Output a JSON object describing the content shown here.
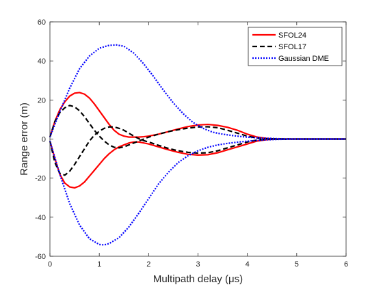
{
  "chart_data": {
    "type": "line",
    "xlabel": "Multipath delay (μs)",
    "ylabel": "Range error (m)",
    "xlim": [
      0,
      6
    ],
    "ylim": [
      -60,
      60
    ],
    "xticks": [
      0,
      1,
      2,
      3,
      4,
      5,
      6
    ],
    "yticks": [
      -60,
      -40,
      -20,
      0,
      20,
      40,
      60
    ],
    "grid": false,
    "legend_position": "top-right",
    "series": [
      {
        "name": "SFOL24",
        "color": "#ff0000",
        "style": "solid",
        "upper": {
          "x": [
            0,
            0.1,
            0.2,
            0.3,
            0.4,
            0.5,
            0.6,
            0.7,
            0.8,
            0.9,
            1.0,
            1.1,
            1.2,
            1.3,
            1.4,
            1.5,
            1.6,
            1.7,
            1.8,
            1.9,
            2.0,
            2.2,
            2.4,
            2.6,
            2.8,
            3.0,
            3.2,
            3.4,
            3.6,
            3.8,
            4.0,
            4.2,
            4.4,
            4.6,
            5.0,
            6.0
          ],
          "y": [
            1,
            9,
            15,
            19,
            22,
            23.5,
            23.8,
            23,
            21,
            18,
            14.5,
            11,
            7.5,
            4.5,
            2.5,
            1.5,
            1,
            1,
            1,
            1.2,
            1.5,
            2.5,
            3.8,
            5.2,
            6.4,
            7.2,
            7.5,
            7,
            6,
            4.5,
            2.5,
            1,
            0.3,
            0,
            0,
            0
          ]
        },
        "lower": {
          "x": [
            0,
            0.1,
            0.2,
            0.3,
            0.4,
            0.5,
            0.6,
            0.7,
            0.8,
            0.9,
            1.0,
            1.1,
            1.2,
            1.3,
            1.4,
            1.5,
            1.6,
            1.7,
            1.8,
            1.9,
            2.0,
            2.2,
            2.4,
            2.6,
            2.8,
            3.0,
            3.2,
            3.4,
            3.6,
            3.8,
            4.0,
            4.2,
            4.4,
            4.6,
            5.0,
            6.0
          ],
          "y": [
            -1,
            -10,
            -18,
            -22.5,
            -24.5,
            -25,
            -24,
            -22,
            -19,
            -16,
            -13,
            -10,
            -7.5,
            -5.5,
            -4,
            -3,
            -2,
            -1.5,
            -1.5,
            -2,
            -2.5,
            -4,
            -5.5,
            -6.8,
            -7.8,
            -8.2,
            -8,
            -7,
            -5.5,
            -4,
            -2.5,
            -1,
            -0.3,
            0,
            0,
            0
          ]
        }
      },
      {
        "name": "SFOL17",
        "color": "#000000",
        "style": "dashed",
        "upper": {
          "x": [
            0,
            0.1,
            0.2,
            0.3,
            0.4,
            0.5,
            0.6,
            0.7,
            0.8,
            0.9,
            1.0,
            1.1,
            1.2,
            1.3,
            1.4,
            1.5,
            1.6,
            1.7,
            1.8,
            1.9,
            2.0,
            2.2,
            2.4,
            2.6,
            2.8,
            3.0,
            3.2,
            3.4,
            3.6,
            3.8,
            4.0,
            4.2,
            4.4,
            5.0,
            6.0
          ],
          "y": [
            1,
            9,
            13.5,
            16,
            17.2,
            16.5,
            14.5,
            11.5,
            8,
            4.5,
            1.5,
            -1,
            -3,
            -4.2,
            -4.5,
            -4,
            -3,
            -2,
            -1,
            0,
            1,
            2.5,
            3.8,
            4.8,
            5.6,
            6.2,
            6.3,
            5.8,
            4.5,
            3,
            1.5,
            0.5,
            0.1,
            0,
            0
          ]
        },
        "lower": {
          "x": [
            0,
            0.1,
            0.2,
            0.3,
            0.4,
            0.5,
            0.6,
            0.7,
            0.8,
            0.9,
            1.0,
            1.1,
            1.2,
            1.3,
            1.4,
            1.5,
            1.6,
            1.7,
            1.8,
            1.9,
            2.0,
            2.2,
            2.4,
            2.6,
            2.8,
            3.0,
            3.2,
            3.4,
            3.6,
            3.8,
            4.0,
            4.2,
            4.4,
            5.0,
            6.0
          ],
          "y": [
            -1,
            -12,
            -17.5,
            -18.5,
            -16.5,
            -13,
            -9,
            -5,
            -1,
            2,
            4,
            5.5,
            6.2,
            6.2,
            5.5,
            4.5,
            3,
            1.5,
            0.2,
            -0.8,
            -1.5,
            -3.2,
            -4.8,
            -6,
            -6.8,
            -7.2,
            -7,
            -6,
            -4.5,
            -3,
            -1.5,
            -0.5,
            -0.1,
            0,
            0
          ]
        }
      },
      {
        "name": "Gaussian DME",
        "color": "#0000ff",
        "style": "dotted",
        "upper": {
          "x": [
            0,
            0.2,
            0.4,
            0.6,
            0.8,
            1.0,
            1.2,
            1.35,
            1.5,
            1.7,
            1.9,
            2.1,
            2.3,
            2.5,
            2.7,
            2.9,
            3.1,
            3.3,
            3.5,
            3.7,
            3.9,
            4.1,
            4.3,
            4.5,
            4.7,
            5.0,
            6.0
          ],
          "y": [
            1,
            14,
            26,
            36,
            42.5,
            46.5,
            48,
            48.2,
            47.5,
            44,
            38.5,
            32,
            25,
            18.5,
            13,
            8.5,
            5.5,
            3.5,
            2.5,
            1.8,
            1.2,
            0.8,
            0.5,
            0.3,
            0.1,
            0,
            0
          ]
        },
        "lower": {
          "x": [
            0,
            0.2,
            0.4,
            0.6,
            0.8,
            1.0,
            1.1,
            1.2,
            1.4,
            1.6,
            1.8,
            2.0,
            2.2,
            2.4,
            2.6,
            2.8,
            3.0,
            3.2,
            3.4,
            3.6,
            3.8,
            4.0,
            4.2,
            4.4,
            4.6,
            5.0,
            6.0
          ],
          "y": [
            -1,
            -18,
            -33,
            -44,
            -51,
            -54,
            -54.2,
            -53.5,
            -50.5,
            -45,
            -38,
            -30.5,
            -23,
            -17,
            -12,
            -8.5,
            -6,
            -4.2,
            -3,
            -2.2,
            -1.6,
            -1.1,
            -0.7,
            -0.4,
            -0.2,
            0,
            0
          ]
        }
      }
    ]
  }
}
